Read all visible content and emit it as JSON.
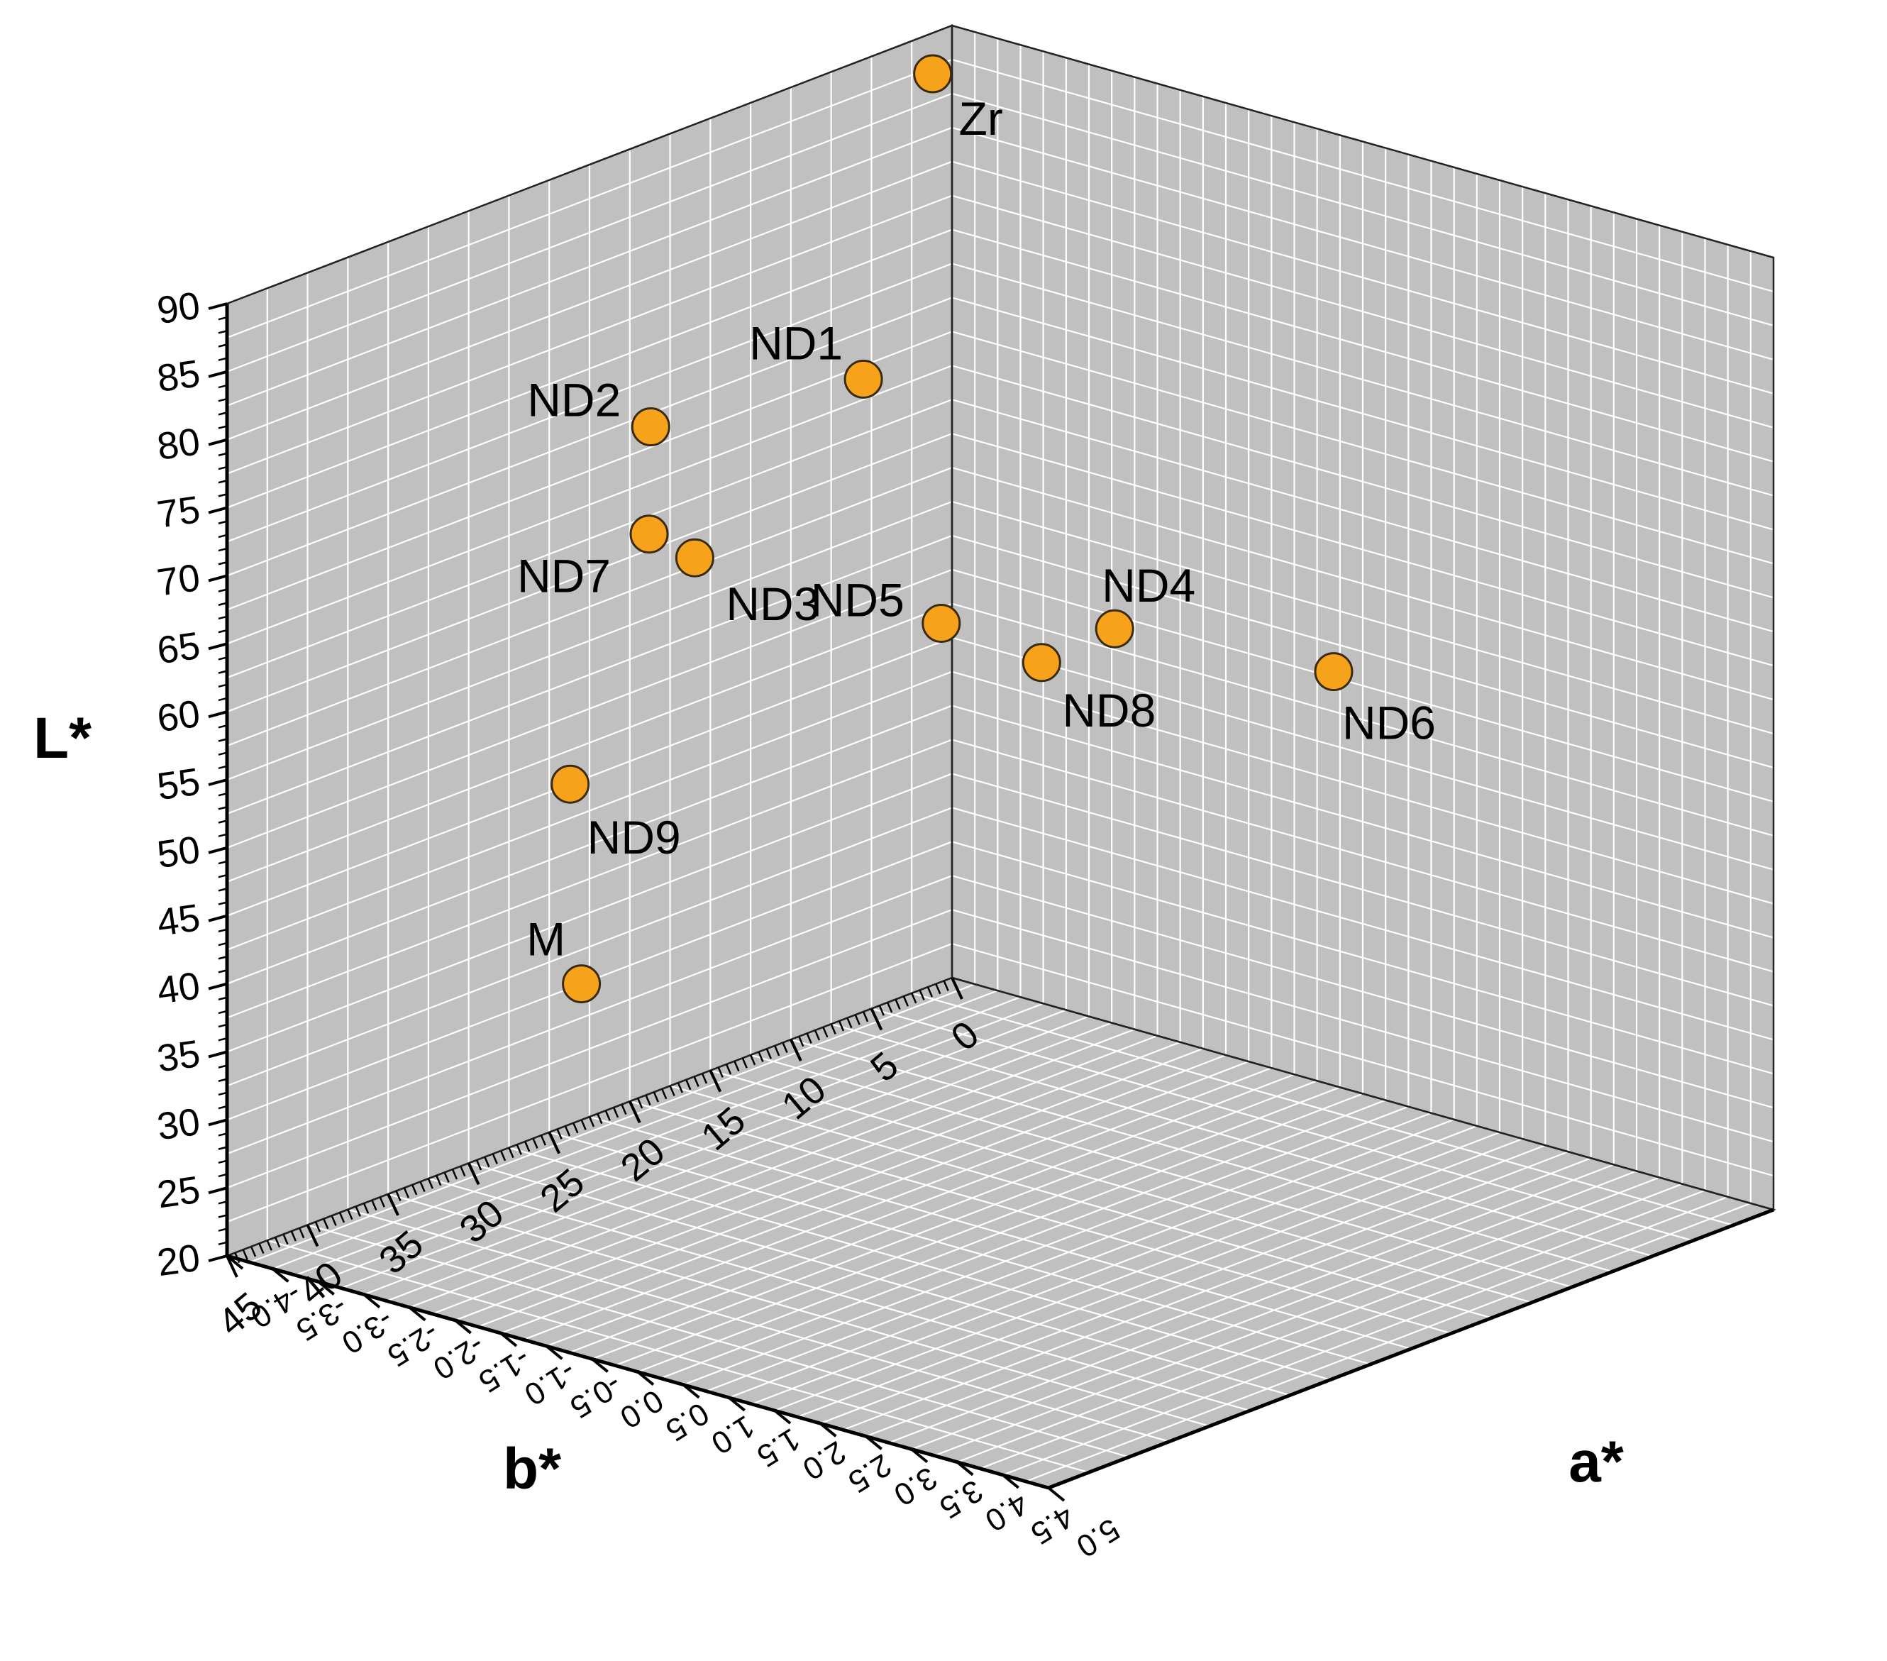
{
  "chart_data": {
    "type": "scatter",
    "title": "",
    "axes": {
      "L": {
        "label": "L*",
        "min": 20,
        "max": 90,
        "ticks": [
          20,
          25,
          30,
          35,
          40,
          45,
          50,
          55,
          60,
          65,
          70,
          75,
          80,
          85,
          90
        ]
      },
      "b": {
        "label": "b*",
        "min": 0,
        "max": 45,
        "ticks": [
          0,
          5,
          10,
          15,
          20,
          25,
          30,
          35,
          40,
          45
        ]
      },
      "a": {
        "label": "a*",
        "min": -4.0,
        "max": 5.0,
        "ticks": [
          -4.0,
          -3.5,
          -3.0,
          -2.5,
          -2.0,
          -1.5,
          -1.0,
          -0.5,
          0.0,
          0.5,
          1.0,
          1.5,
          2.0,
          2.5,
          3.0,
          3.5,
          4.0,
          4.5,
          5.0
        ],
        "tick_labels": [
          "-4.0",
          "-3.5",
          "-3.0",
          "-2.5",
          "-2.0",
          "-1.5",
          "-1.0",
          "-0.5",
          "0.0",
          "0.5",
          "1.0",
          "1.5",
          "2.0",
          "2.5",
          "3.0",
          "3.5",
          "4.0",
          "4.5",
          "5.0"
        ]
      }
    },
    "grid": true,
    "marker_color": "#F7A21B",
    "marker_edge": "#3a2a10",
    "pane_color": "#C0C0C0",
    "points": [
      {
        "label": "Zr",
        "a": -4.0,
        "b": 1.2,
        "L": 87.0
      },
      {
        "label": "ND1",
        "a": -4.0,
        "b": 5.5,
        "L": 66.5
      },
      {
        "label": "ND2",
        "a": -4.0,
        "b": 18.7,
        "L": 69.0
      },
      {
        "label": "ND7",
        "a": -3.7,
        "b": 20.5,
        "L": 62.5
      },
      {
        "label": "ND3",
        "a": -3.2,
        "b": 20.5,
        "L": 61.7
      },
      {
        "label": "ND5",
        "a": -0.5,
        "b": 20.5,
        "L": 62.0
      },
      {
        "label": "ND8",
        "a": 0.6,
        "b": 20.5,
        "L": 61.2
      },
      {
        "label": "ND4",
        "a": 1.4,
        "b": 20.5,
        "L": 65.2
      },
      {
        "label": "ND6",
        "a": 3.8,
        "b": 20.5,
        "L": 66.6
      },
      {
        "label": "ND9",
        "a": -4.0,
        "b": 23.7,
        "L": 45.0
      },
      {
        "label": "M",
        "a": -4.0,
        "b": 23.0,
        "L": 30.0
      }
    ]
  }
}
